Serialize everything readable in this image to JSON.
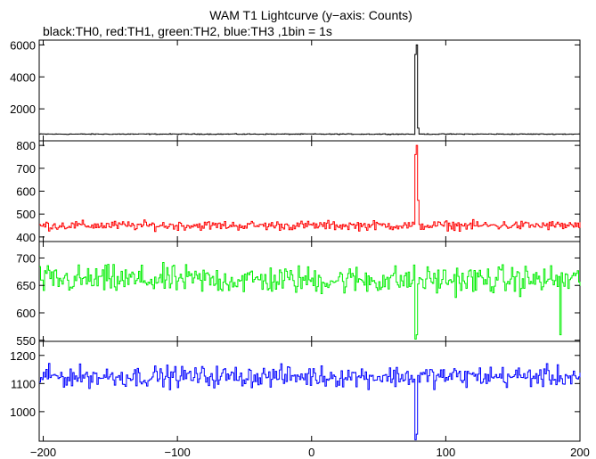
{
  "chart_data": {
    "type": "line",
    "title": "WAM T1 Lightcurve (y−axis: Counts)",
    "subtitle": "black:TH0, red:TH1, green:TH2, blue:TH3 ,1bin = 1s",
    "xlim": [
      -203,
      200
    ],
    "x_ticks": [
      -200,
      -100,
      0,
      100,
      200
    ],
    "x_tick_labels": [
      "−200",
      "−100",
      "0",
      "100",
      "200"
    ],
    "x_step": 1,
    "grid": false,
    "series": [
      {
        "name": "TH0",
        "color": "#000000",
        "ylim": [
          0,
          6300
        ],
        "yticks": [
          2000,
          4000,
          6000
        ],
        "baseline": 420,
        "noise_amplitude": 35,
        "spikes": [
          [
            77,
            5400
          ],
          [
            78,
            6000
          ],
          [
            79,
            800
          ]
        ],
        "dips": []
      },
      {
        "name": "TH1",
        "color": "#ff0000",
        "ylim": [
          380,
          820
        ],
        "yticks": [
          400,
          500,
          600,
          700,
          800
        ],
        "baseline": 450,
        "noise_amplitude": 30,
        "spikes": [
          [
            77,
            760
          ],
          [
            78,
            800
          ],
          [
            79,
            560
          ]
        ],
        "dips": []
      },
      {
        "name": "TH2",
        "color": "#00ee00",
        "ylim": [
          548,
          730
        ],
        "yticks": [
          550,
          600,
          650,
          700
        ],
        "baseline": 660,
        "noise_amplitude": 38,
        "spikes": [],
        "dips": [
          [
            77,
            552
          ],
          [
            78,
            560
          ],
          [
            185,
            560
          ]
        ]
      },
      {
        "name": "TH3",
        "color": "#0000ff",
        "ylim": [
          895,
          1250
        ],
        "yticks": [
          1000,
          1100,
          1200
        ],
        "baseline": 1125,
        "noise_amplitude": 55,
        "spikes": [],
        "dips": [
          [
            77,
            900
          ],
          [
            78,
            920
          ]
        ]
      }
    ]
  }
}
